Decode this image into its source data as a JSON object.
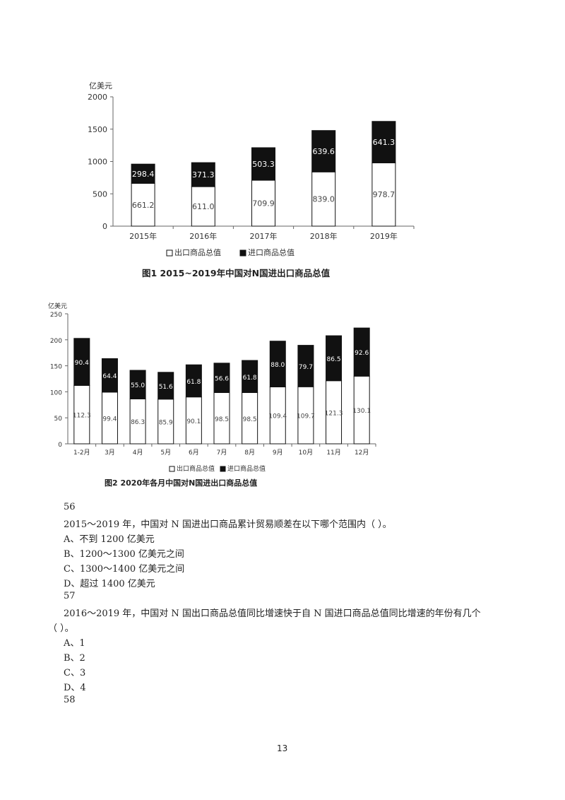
{
  "chart_data": [
    {
      "type": "bar",
      "stacked": true,
      "title": "",
      "ylabel": "亿美元",
      "xlabel": "",
      "categories": [
        "2015年",
        "2016年",
        "2017年",
        "2018年",
        "2019年"
      ],
      "series": [
        {
          "name": "出口商品总值",
          "color": "#ffffff",
          "values": [
            661.2,
            611.0,
            709.9,
            839.0,
            978.7
          ]
        },
        {
          "name": "进口商品总值",
          "color": "#111111",
          "values": [
            298.4,
            371.3,
            503.3,
            639.6,
            641.3
          ]
        }
      ],
      "value_labels": [
        [
          "661.2",
          "611.0",
          "709.9",
          "839.0",
          "978.7"
        ],
        [
          "298.4",
          "371.3",
          "503.3",
          "639.6",
          "641.3"
        ]
      ],
      "ylim": [
        0,
        2000
      ],
      "yticks": [
        "0",
        "500",
        "1000",
        "1500",
        "2000"
      ],
      "grid": false,
      "legend": "bottom"
    },
    {
      "type": "bar",
      "stacked": true,
      "title": "",
      "ylabel": "亿美元",
      "xlabel": "",
      "categories": [
        "1-2月",
        "3月",
        "4月",
        "5月",
        "6月",
        "7月",
        "8月",
        "9月",
        "10月",
        "11月",
        "12月"
      ],
      "series": [
        {
          "name": "出口商品总值",
          "color": "#ffffff",
          "values": [
            112.3,
            99.4,
            86.3,
            85.9,
            90.1,
            98.5,
            98.5,
            109.4,
            109.7,
            121.3,
            130.1
          ]
        },
        {
          "name": "进口商品总值",
          "color": "#111111",
          "values": [
            90.4,
            64.4,
            55.0,
            51.6,
            61.8,
            56.6,
            61.8,
            88.0,
            79.7,
            86.5,
            92.6
          ]
        }
      ],
      "value_labels": [
        [
          "112.3",
          "99.4",
          "86.3",
          "85.9",
          "90.1",
          "98.5",
          "98.5",
          "109.4",
          "109.7",
          "121.3",
          "130.1"
        ],
        [
          "90.4",
          "64.4",
          "55.0",
          "51.6",
          "61.8",
          "56.6",
          "61.8",
          "88.0",
          "79.7",
          "86.5",
          "92.6"
        ]
      ],
      "ylim": [
        0,
        250
      ],
      "yticks": [
        "0",
        "50",
        "100",
        "150",
        "200",
        "250"
      ],
      "grid": false,
      "legend": "bottom"
    }
  ],
  "captions": {
    "fig1": "图1  2015~2019年中国对N国进出口商品总值",
    "fig2": "图2  2020年各月中国对N国进出口商品总值"
  },
  "questions": {
    "q56_num": "56",
    "q56_text": "2015～2019 年，中国对 N 国进出口商品累计贸易顺差在以下哪个范围内（          ）。",
    "q56_a": "A、不到 1200 亿美元",
    "q56_b": "B、1200～1300 亿美元之间",
    "q56_c": "C、1300～1400 亿美元之间",
    "q56_d": "D、超过 1400 亿美元",
    "q57_num": "57",
    "q57_text_1": "2016～2019 年，中国对 N 国出口商品总值同比增速快于自 N 国进口商品总值同比增速的年份有几个",
    "q57_text_2": "（        ）。",
    "q57_a": "A、1",
    "q57_b": "B、2",
    "q57_c": "C、3",
    "q57_d": "D、4",
    "q58_num": "58"
  },
  "page_number": "13"
}
